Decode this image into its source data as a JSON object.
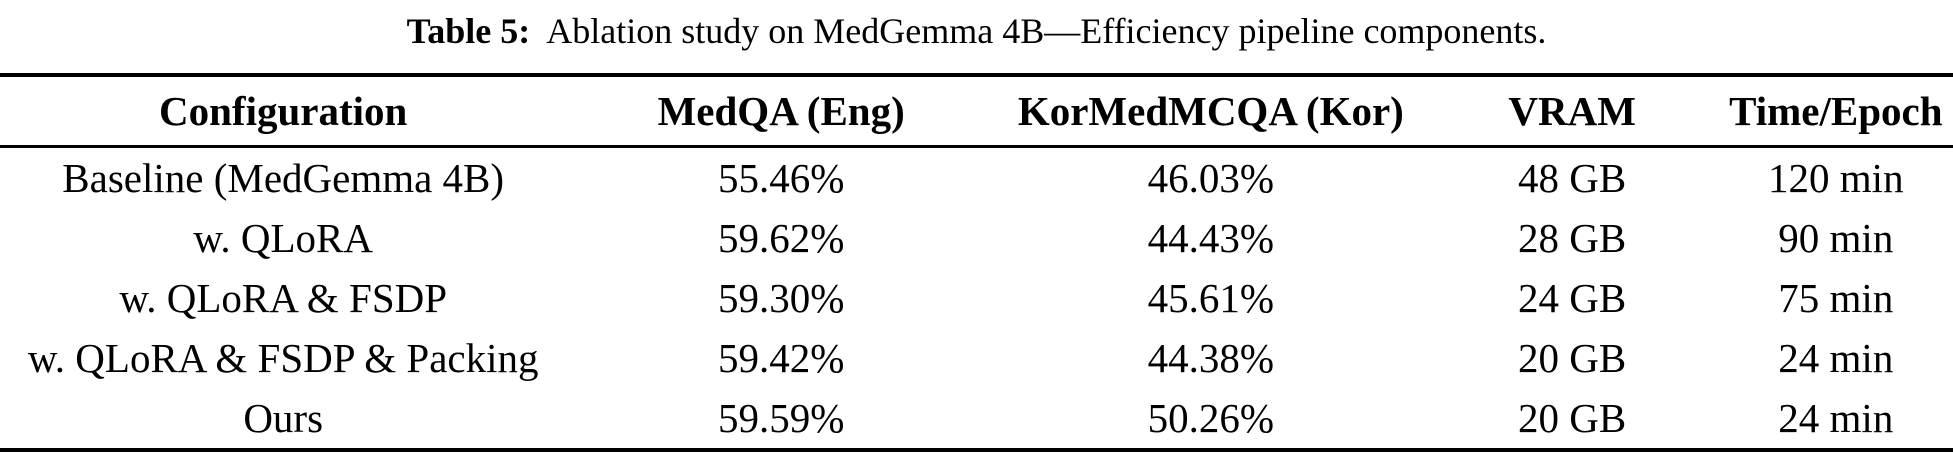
{
  "caption": {
    "label": "Table 5:",
    "text": "Ablation study on MedGemma 4B—Efficiency pipeline components."
  },
  "table": {
    "columns": [
      "Configuration",
      "MedQA (Eng)",
      "KorMedMCQA (Kor)",
      "VRAM",
      "Time/Epoch"
    ],
    "rows": [
      [
        "Baseline (MedGemma 4B)",
        "55.46%",
        "46.03%",
        "48 GB",
        "120 min"
      ],
      [
        "w. QLoRA",
        "59.62%",
        "44.43%",
        "28 GB",
        "90 min"
      ],
      [
        "w. QLoRA & FSDP",
        "59.30%",
        "45.61%",
        "24 GB",
        "75 min"
      ],
      [
        "w. QLoRA & FSDP & Packing",
        "59.42%",
        "44.38%",
        "20 GB",
        "24 min"
      ],
      [
        "Ours",
        "59.59%",
        "50.26%",
        "20 GB",
        "24 min"
      ]
    ]
  },
  "colors": {
    "text": "#000000",
    "background": "#ffffff",
    "rule": "#000000"
  }
}
